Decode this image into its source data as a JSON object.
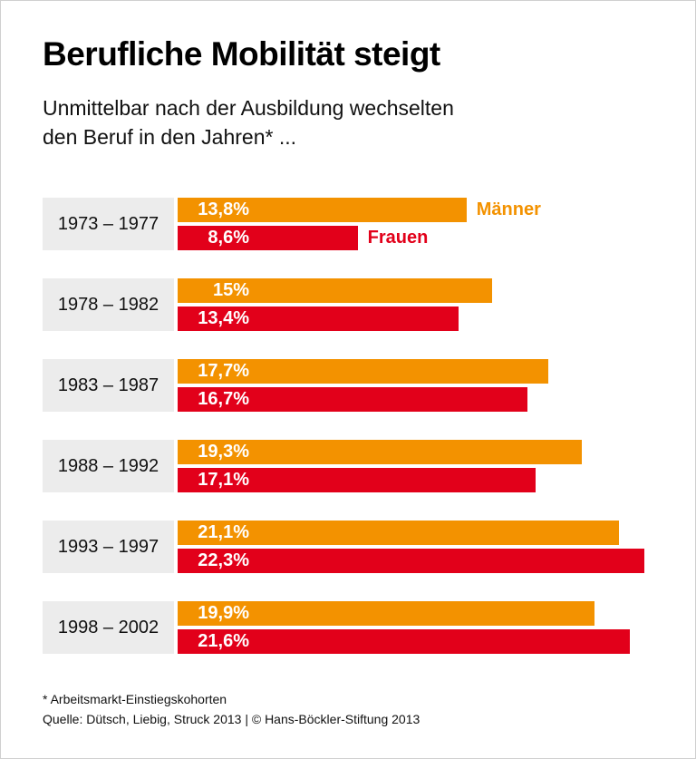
{
  "title": "Berufliche Mobilität steigt",
  "subtitle_lines": [
    "Unmittelbar nach der Ausbildung wechselten",
    "den Beruf in den Jahren* ..."
  ],
  "colors": {
    "maenner": "#f39200",
    "frauen": "#e2001a",
    "label_bg": "#ececec"
  },
  "chart_data": {
    "type": "bar",
    "orientation": "horizontal",
    "categories": [
      "1973 – 1977",
      "1978 – 1982",
      "1983 – 1987",
      "1988 – 1992",
      "1993 – 1997",
      "1998 – 2002"
    ],
    "series": [
      {
        "name": "Männer",
        "values": [
          13.8,
          15,
          17.7,
          19.3,
          21.1,
          19.9
        ],
        "labels": [
          "13,8%",
          "15%",
          "17,7%",
          "19,3%",
          "21,1%",
          "19,9%"
        ]
      },
      {
        "name": "Frauen",
        "values": [
          8.6,
          13.4,
          16.7,
          17.1,
          22.3,
          21.6
        ],
        "labels": [
          "8,6%",
          "13,4%",
          "16,7%",
          "17,1%",
          "22,3%",
          "21,6%"
        ]
      }
    ],
    "unit": "%",
    "legend": "inline next to first group"
  },
  "footnote": "* Arbeitsmarkt-Einstiegskohorten",
  "source": "Quelle: Dütsch, Liebig, Struck 2013 | © Hans-Böckler-Stiftung 2013"
}
